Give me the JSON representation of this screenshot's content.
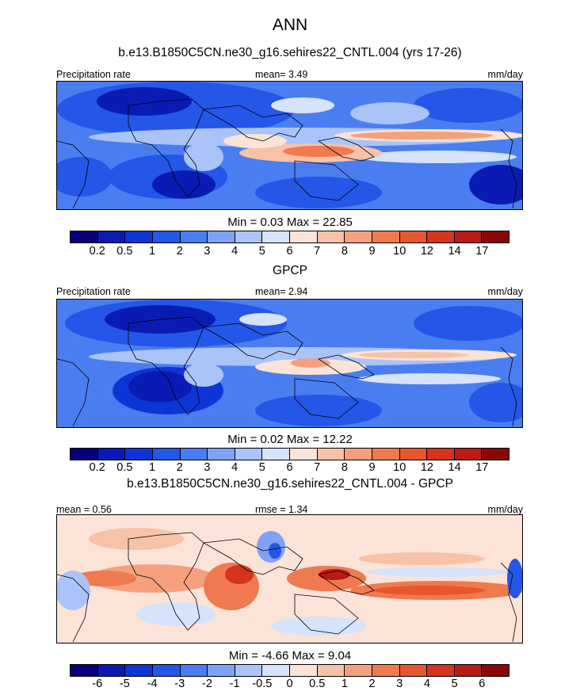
{
  "title": "ANN",
  "panels": [
    {
      "header": "b.e13.B1850C5CN.ne30_g16.sehires22_CNTL.004 (yrs 17-26)",
      "left_label": "Precipitation rate",
      "center_label": "mean=  3.49",
      "right_label": "mm/day",
      "minmax": "Min =   0.03 Max =  22.85",
      "style": "model"
    },
    {
      "header": "GPCP",
      "left_label": "Precipitation rate",
      "center_label": "mean=  2.94",
      "right_label": "mm/day",
      "minmax": "Min =   0.02 Max =  12.22",
      "style": "obs"
    },
    {
      "header": "b.e13.B1850C5CN.ne30_g16.sehires22_CNTL.004 - GPCP",
      "left_label": "mean =  0.56",
      "center_label": "rmse =  1.34",
      "right_label": "mm/day",
      "minmax": "Min =  -4.66 Max =   9.04",
      "style": "diff"
    }
  ],
  "colorbar_precip": {
    "colors": [
      "#08007a",
      "#0a1bb3",
      "#0d35d6",
      "#2456e8",
      "#4a7ef0",
      "#7ea2f5",
      "#aac3f8",
      "#d5e3fb",
      "#fbe3d8",
      "#f8c2a8",
      "#f4a07e",
      "#ef7a50",
      "#e8562d",
      "#d6341c",
      "#b81b14",
      "#8a0707"
    ],
    "labels": [
      "0.2",
      "0.5",
      "1",
      "2",
      "3",
      "4",
      "5",
      "6",
      "7",
      "8",
      "9",
      "10",
      "12",
      "14",
      "17"
    ]
  },
  "colorbar_diff": {
    "colors": [
      "#08007a",
      "#0a1bb3",
      "#0d35d6",
      "#2456e8",
      "#4a7ef0",
      "#7ea2f5",
      "#aac3f8",
      "#d5e3fb",
      "#fbe3d8",
      "#f8c2a8",
      "#f4a07e",
      "#ef7a50",
      "#e8562d",
      "#d6341c",
      "#b81b14",
      "#8a0707"
    ],
    "labels": [
      "-6",
      "-5",
      "-4",
      "-3",
      "-2",
      "-1",
      "-0.5",
      "0",
      "0.5",
      "1",
      "2",
      "3",
      "4",
      "5",
      "6"
    ]
  }
}
